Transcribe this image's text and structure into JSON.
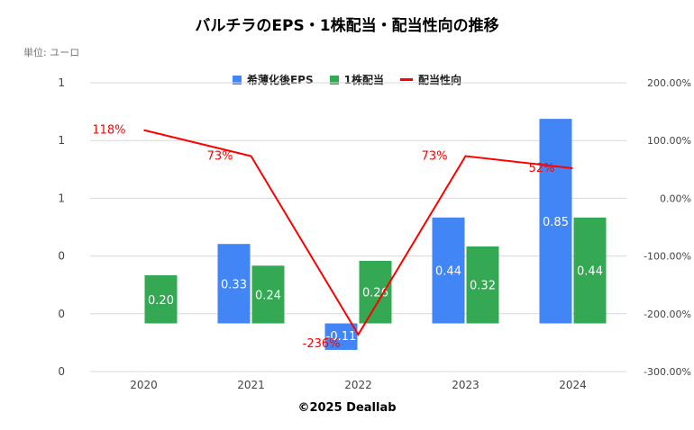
{
  "page": {
    "title": "バルチラのEPS・1株配当・配当性向の推移",
    "unit_label": "単位: ユーロ",
    "footer": "©2025 Deallab"
  },
  "colors": {
    "eps": "#4285f4",
    "dividend": "#34a853",
    "payout": "#ff0000"
  },
  "chart_data": {
    "type": "bar",
    "categories": [
      "2020",
      "2021",
      "2022",
      "2023",
      "2024"
    ],
    "series": [
      {
        "name": "希薄化後EPS",
        "type": "bar",
        "values": [
          null,
          0.33,
          -0.11,
          0.44,
          0.85
        ],
        "labels": [
          "",
          "0.33",
          "-0.11",
          "0.44",
          "0.85"
        ]
      },
      {
        "name": "1株配当",
        "type": "bar",
        "values": [
          0.2,
          0.24,
          0.26,
          0.32,
          0.44
        ],
        "labels": [
          "0.20",
          "0.24",
          "0.26",
          "0.32",
          "0.44"
        ]
      },
      {
        "name": "配当性向",
        "type": "line",
        "axis": "right",
        "values": [
          118,
          73,
          -236,
          73,
          52
        ],
        "labels": [
          "118%",
          "73%",
          "-236%",
          "73%",
          "52%"
        ]
      }
    ],
    "left_axis": {
      "min": -0.2,
      "max": 1.0,
      "tick_labels": [
        "1",
        "1",
        "1",
        "0",
        "0",
        "0"
      ]
    },
    "right_axis": {
      "min": -300,
      "max": 200,
      "tick_labels": [
        "200.00%",
        "100.00%",
        "0.00%",
        "-100.00%",
        "-200.00%",
        "-300.00%"
      ]
    },
    "legend_position": "top-center",
    "grid": true
  }
}
